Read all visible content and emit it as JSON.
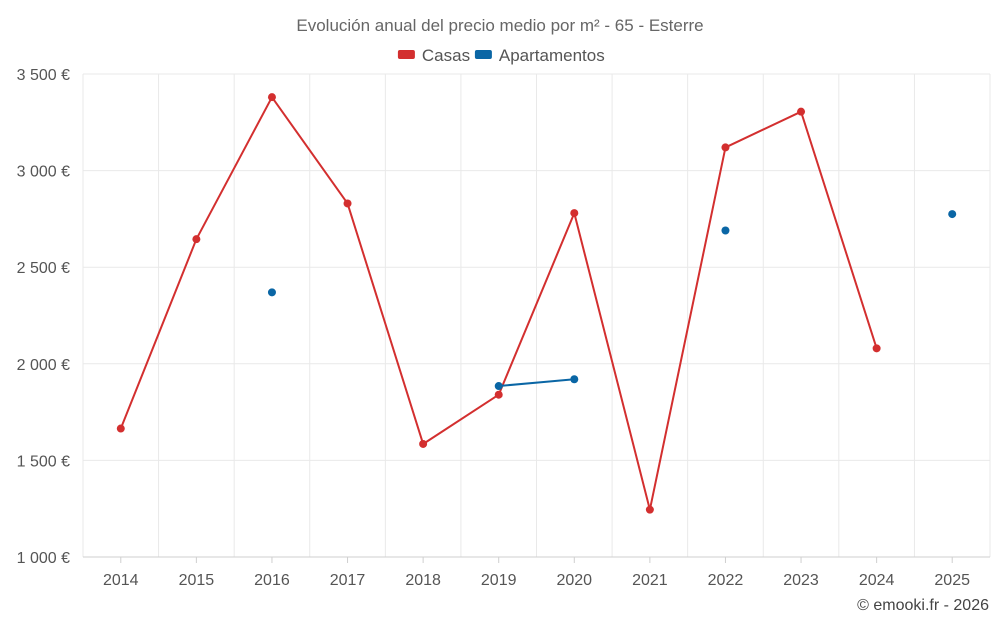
{
  "chart_data": {
    "type": "line",
    "title": "Evolución anual del precio medio por m² - 65 - Esterre",
    "xlabel": "",
    "ylabel": "",
    "categories": [
      "2014",
      "2015",
      "2016",
      "2017",
      "2018",
      "2019",
      "2020",
      "2021",
      "2022",
      "2023",
      "2024",
      "2025"
    ],
    "ylim": [
      1000,
      3500
    ],
    "yticks": [
      1000,
      1500,
      2000,
      2500,
      3000,
      3500
    ],
    "ytick_labels": [
      "1 000 €",
      "1 500 €",
      "2 000 €",
      "2 500 €",
      "3 000 €",
      "3 500 €"
    ],
    "grid": true,
    "legend_position": "top-center",
    "series": [
      {
        "name": "Casas",
        "color": "#d32f2f",
        "values": [
          1665,
          2645,
          3380,
          2830,
          1585,
          1840,
          2780,
          1245,
          3120,
          3305,
          2080,
          null
        ]
      },
      {
        "name": "Apartamentos",
        "color": "#0a66a5",
        "values": [
          null,
          null,
          2370,
          null,
          null,
          1885,
          1920,
          null,
          2690,
          null,
          null,
          2775
        ]
      }
    ],
    "credit": "© emooki.fr - 2026"
  }
}
